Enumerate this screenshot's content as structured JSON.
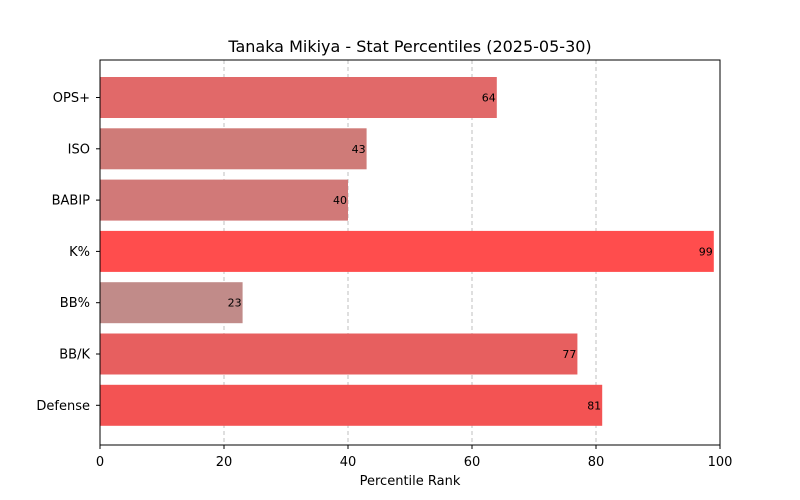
{
  "chart_data": {
    "type": "bar",
    "orientation": "horizontal",
    "title": "Tanaka Mikiya - Stat Percentiles (2025-05-30)",
    "xlabel": "Percentile Rank",
    "ylabel": "",
    "xlim": [
      0,
      100
    ],
    "xticks": [
      0,
      20,
      40,
      60,
      80,
      100
    ],
    "grid": "x-dashed",
    "categories": [
      "OPS+",
      "ISO",
      "BABIP",
      "K%",
      "BB%",
      "BB/K",
      "Defense"
    ],
    "values": [
      64,
      43,
      40,
      99,
      23,
      77,
      81
    ],
    "colors": [
      "#e16969",
      "#cf7b78",
      "#d17978",
      "#ff4d4d",
      "#c18b89",
      "#e75f5f",
      "#f35353"
    ]
  }
}
